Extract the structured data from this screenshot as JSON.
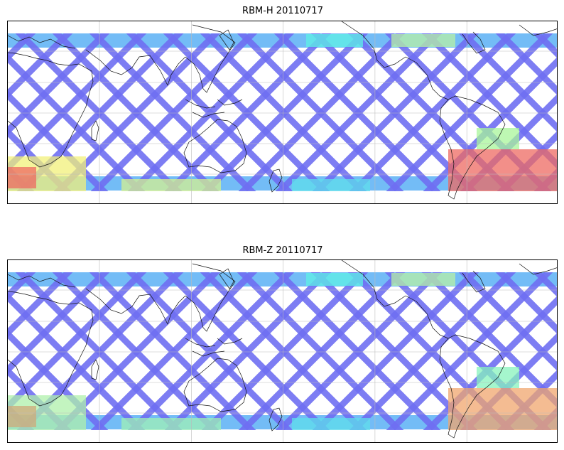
{
  "panels": [
    {
      "title": "RBM-H 20110717",
      "hot_level": 1.0
    },
    {
      "title": "RBM-Z 20110717",
      "hot_level": 0.55
    }
  ],
  "colors": {
    "track_base": "#6f6ff2",
    "track_light": "#5ab0f5",
    "cyan": "#5ef0e6",
    "green": "#a8f59a",
    "yellow": "#f2f07a",
    "orange": "#f5a860",
    "red": "#ee6a62",
    "coast": "#111111",
    "grid": "#bbbbbb"
  }
}
